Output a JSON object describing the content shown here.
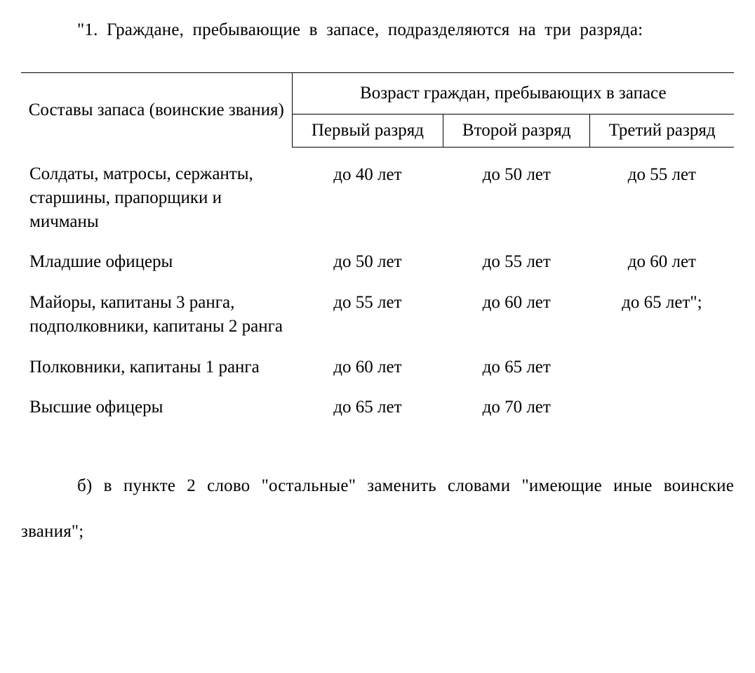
{
  "colors": {
    "background": "#ffffff",
    "text": "#000000",
    "border": "#000000"
  },
  "typography": {
    "font_family": "Times New Roman",
    "body_fontsize_pt": 19,
    "line_height_intro": 2.6
  },
  "intro_text": "\"1. Граждане, пребывающие в запасе, подразделяются на три разряда:",
  "table": {
    "type": "table",
    "header_left": "Составы запаса (воинские звания)",
    "header_group": "Возраст граждан, пребывающих в запасе",
    "sub_headers": [
      "Первый разряд",
      "Второй разряд",
      "Третий разряд"
    ],
    "column_widths_pct": [
      38,
      21,
      21,
      20
    ],
    "rows": [
      {
        "rank": "Солдаты, матросы, сержанты, старшины, прапорщики и мичманы",
        "c1": "до 40 лет",
        "c2": "до 50 лет",
        "c3": "до 55 лет"
      },
      {
        "rank": "Младшие офицеры",
        "c1": "до 50 лет",
        "c2": "до 55 лет",
        "c3": "до 60 лет"
      },
      {
        "rank": "Майоры, капитаны 3 ранга, подполковники, капитаны 2 ранга",
        "c1": "до 55 лет",
        "c2": "до 60 лет",
        "c3": "до 65 лет\";"
      },
      {
        "rank": "Полковники, капитаны 1 ранга",
        "c1": "до 60 лет",
        "c2": "до 65 лет",
        "c3": ""
      },
      {
        "rank": "Высшие офицеры",
        "c1": "до 65 лет",
        "c2": "до 70 лет",
        "c3": ""
      }
    ]
  },
  "outro_text": "б) в пункте 2 слово \"остальные\" заменить словами \"имеющие иные воинские звания\";"
}
